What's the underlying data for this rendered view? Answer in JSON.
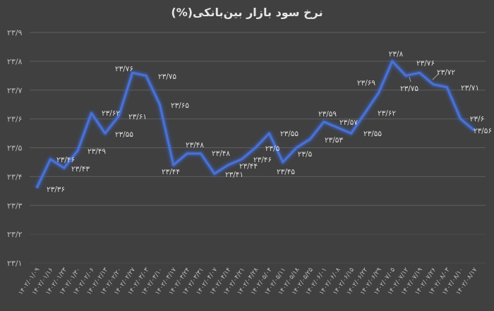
{
  "chart_data": {
    "type": "line",
    "title": "نرخ سود بازار بین‌بانکی(%)",
    "xlabel": "",
    "ylabel": "",
    "ylim": [
      23.1,
      23.9
    ],
    "yticks": [
      "۲۳/۱",
      "۲۳/۲",
      "۲۳/۳",
      "۲۳/۴",
      "۲۳/۵",
      "۲۳/۶",
      "۲۳/۷",
      "۲۳/۸",
      "۲۳/۹"
    ],
    "grid": true,
    "legend": null,
    "line_color": "#4a72d6",
    "background_color": "#404040",
    "categories": [
      "۱۴۰۲/۰۱/۰۹",
      "۱۴۰۲/۰۱/۱۶",
      "۱۴۰۲/۰۱/۲۳",
      "۱۴۰۲/۰۱/۳۰",
      "۱۴۰۲/۰۲/۰۶",
      "۱۴۰۲/۰۲/۱۳",
      "۱۴۰۲/۰۲/۲۰",
      "۱۴۰۲/۰۲/۲۷",
      "۱۴۰۲/۰۳/۰۳",
      "۱۴۰۲/۰۳/۱۰",
      "۱۴۰۲/۰۳/۱۷",
      "۱۴۰۲/۰۳/۲۴",
      "۱۴۰۲/۰۳/۳۱",
      "۱۴۰۲/۰۴/۰۷",
      "۱۴۰۲/۰۴/۱۴",
      "۱۴۰۲/۰۴/۲۱",
      "۱۴۰۲/۰۴/۲۸",
      "۱۴۰۲/۰۵/۰۴",
      "۱۴۰۲/۰۵/۱۱",
      "۱۴۰۲/۰۵/۱۸",
      "۱۴۰۲/۰۵/۲۵",
      "۱۴۰۲/۰۶/۰۱",
      "۱۴۰۲/۰۶/۰۸",
      "۱۴۰۲/۰۶/۱۵",
      "۱۴۰۲/۰۶/۲۲",
      "۱۴۰۲/۰۶/۲۹",
      "۱۴۰۲/۰۷/۰۵",
      "۱۴۰۲/۰۷/۱۲",
      "۱۴۰۲/۰۷/۱۹",
      "۱۴۰۲/۰۷/۲۶",
      "۱۴۰۲/۰۸/۰۳",
      "۱۴۰۲/۰۸/۱۰",
      "۱۴۰۲/۰۸/۱۷"
    ],
    "values": [
      23.36,
      23.46,
      23.43,
      23.49,
      23.62,
      23.55,
      23.61,
      23.76,
      23.75,
      23.65,
      23.44,
      23.48,
      23.48,
      23.41,
      23.44,
      23.46,
      23.5,
      23.55,
      23.45,
      23.5,
      23.53,
      23.59,
      23.57,
      23.55,
      23.62,
      23.69,
      23.8,
      23.75,
      23.76,
      23.72,
      23.71,
      23.6,
      23.56
    ],
    "data_labels": [
      "۲۳/۳۶",
      "۲۳/۴۶",
      "۲۳/۴۳",
      "۲۳/۴۹",
      "۲۳/۶۲",
      "۲۳/۵۵",
      "۲۳/۶۱",
      "۲۳/۷۶",
      "۲۳/۷۵",
      "۲۳/۶۵",
      "۲۳/۴۴",
      "۲۳/۴۸",
      "۲۳/۴۸",
      "۲۳/۴۱",
      "۲۳/۴۴",
      "۲۳/۴۶",
      "۲۳/۵",
      "۲۳/۵۵",
      "۲۳/۴۵",
      "۲۳/۵",
      "۲۳/۵۳",
      "۲۳/۵۹",
      "۲۳/۵۷",
      "۲۳/۵۵",
      "۲۳/۶۲",
      "۲۳/۶۹",
      "۲۳/۸",
      "۲۳/۷۵",
      "۲۳/۷۶",
      "۲۳/۷۲",
      "۲۳/۷۱",
      "۲۳/۶",
      "۲۳/۵۶"
    ],
    "label_positions": [
      [
        79,
        272
      ],
      [
        93,
        230
      ],
      [
        114,
        243
      ],
      [
        137,
        218
      ],
      [
        157,
        164
      ],
      [
        176,
        194
      ],
      [
        195,
        169
      ],
      [
        176,
        101
      ],
      [
        237,
        112
      ],
      [
        255,
        153
      ],
      [
        242,
        247
      ],
      [
        276,
        209
      ],
      [
        313,
        221
      ],
      [
        332,
        251
      ],
      [
        352,
        239
      ],
      [
        372,
        230
      ],
      [
        386,
        214
      ],
      [
        410,
        193
      ],
      [
        405,
        247
      ],
      [
        432,
        222
      ],
      [
        473,
        202
      ],
      [
        464,
        165
      ],
      [
        494,
        177
      ],
      [
        528,
        193
      ],
      [
        548,
        164
      ],
      [
        519,
        121
      ],
      [
        561,
        80
      ],
      [
        580,
        129
      ],
      [
        603,
        93
      ],
      [
        632,
        106
      ],
      [
        666,
        128
      ],
      [
        676,
        172
      ],
      [
        684,
        189
      ]
    ]
  }
}
